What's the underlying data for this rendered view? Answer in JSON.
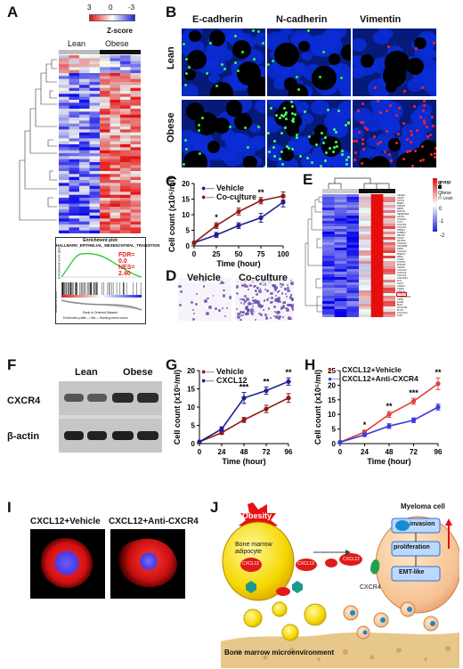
{
  "panels": {
    "A": {
      "label": "A",
      "legend_title": "Z-score",
      "legend_ticks": [
        "3",
        "0",
        "-3"
      ],
      "groups": [
        "Lean",
        "Obese"
      ],
      "gsea": {
        "title": "Enrichment plot:",
        "geneset": "HALLMARK_EPITHELIAL_MESENCHYMAL_TRANSITION",
        "fdr": "FDR=",
        "fdr_value": "0.0",
        "nes": "NES=",
        "nes_value": "2.40",
        "ylabel_top": "Enrichment score (ES)",
        "ylabel_bottom": "Ranked list metric",
        "xlabel": "Rank in Ordered Dataset",
        "legend": "Enrichment profile — Hits — Ranking metric scores"
      }
    },
    "B": {
      "label": "B",
      "columns": [
        "E-cadherin",
        "N-cadherin",
        "Vimentin"
      ],
      "rows": [
        "Lean",
        "Obese"
      ]
    },
    "C": {
      "label": "C",
      "xlabel": "Time (hour)",
      "ylabel": "Cell count (x10⁵/ml)",
      "sig": [
        "*",
        "*",
        "**"
      ]
    },
    "D": {
      "label": "D",
      "captions": [
        "Vehicle",
        "Co-culture"
      ]
    },
    "E": {
      "label": "E",
      "legend_title": "group",
      "legend_ticks": [
        "2",
        "1",
        "0",
        "-1",
        "-2"
      ],
      "group_items": [
        "Obese",
        "Lean"
      ],
      "genes": [
        "VEGFA",
        "CDH6",
        "FSTL3",
        "MMP1",
        "PMP22",
        "BMP1",
        "MATN2",
        "SERPINE2",
        "APLP1",
        "COL5A1",
        "THY1",
        "COL4A2",
        "COL4A1",
        "PRRX1",
        "IGFBP3",
        "FBLN5",
        "VCAN",
        "WNT5A",
        "COL6A3",
        "PDGFRB",
        "FZD8",
        "COL3A1",
        "MMP14",
        "FBN1",
        "TGM2",
        "POSTN",
        "MXRA5",
        "CDH11",
        "COL1A2",
        "COL5A2",
        "COL1A1",
        "COL16A1",
        "FN1",
        "SLIT2",
        "LAMA1",
        "SNAI2",
        "TAGLN",
        "CXCL12",
        "TNFRSF12A",
        "CD59",
        "ECM1",
        "MGP",
        "PCOLCE",
        "MYL9",
        "COL12A1",
        "FUM"
      ]
    },
    "F": {
      "label": "F",
      "groups": [
        "Lean",
        "Obese"
      ],
      "rows": [
        "CXCR4",
        "β-actin"
      ]
    },
    "G": {
      "label": "G",
      "xlabel": "Time (hour)",
      "ylabel": "Cell count (x10⁵/ml)",
      "sig": [
        "***",
        "**",
        "**"
      ]
    },
    "H": {
      "label": "H",
      "xlabel": "Time (hour)",
      "ylabel": "Cell count (x10⁵/ml)",
      "sig": [
        "*",
        "**",
        "***",
        "**"
      ]
    },
    "I": {
      "label": "I",
      "captions": [
        "CXCL12+Vehicle",
        "CXCL12+Anti-CXCR4"
      ]
    },
    "J": {
      "label": "J",
      "obesity": "Obesity",
      "adipocyte": "Bone marrow adipocyte",
      "myeloma": "Myeloma cell",
      "cxcl12_labels": [
        "CXCL12",
        "CXCL12",
        "CXCL12"
      ],
      "cxcr4": "CXCR4",
      "invasion": "invasion",
      "proliferation": "proliferation",
      "emt": "EMT-like",
      "microenv": "Bone marrow microenvironment"
    }
  },
  "chart_data": [
    {
      "type": "line",
      "panel": "C",
      "x": [
        0,
        25,
        50,
        75,
        100
      ],
      "series": [
        {
          "name": "Vehicle",
          "values": [
            1.0,
            3.5,
            6.5,
            9.0,
            14.0
          ],
          "err": [
            0.3,
            0.8,
            0.9,
            1.4,
            1.5
          ],
          "color": "#1f1f8c"
        },
        {
          "name": "Co-culture",
          "values": [
            1.0,
            6.5,
            11.0,
            14.5,
            16.0
          ],
          "err": [
            0.3,
            0.9,
            1.1,
            1.0,
            1.3
          ],
          "color": "#8c1a1a"
        }
      ],
      "xticks": [
        0,
        25,
        50,
        75,
        100
      ],
      "yticks": [
        0,
        5,
        10,
        15,
        20
      ],
      "ylim": [
        0,
        20
      ],
      "xlabel": "Time (hour)",
      "ylabel": "Cell count (x10⁵/ml)"
    },
    {
      "type": "line",
      "panel": "G",
      "x": [
        0,
        24,
        48,
        72,
        96
      ],
      "series": [
        {
          "name": "Vehicle",
          "values": [
            0.5,
            3.0,
            6.5,
            9.5,
            12.5
          ],
          "err": [
            0.2,
            0.5,
            0.7,
            1.0,
            1.2
          ],
          "color": "#8c1a1a"
        },
        {
          "name": "CXCL12",
          "values": [
            0.5,
            4.0,
            12.5,
            14.5,
            17.0
          ],
          "err": [
            0.2,
            0.6,
            1.5,
            1.0,
            1.0
          ],
          "color": "#1f1f8c"
        }
      ],
      "xticks": [
        0,
        24,
        48,
        72,
        96
      ],
      "yticks": [
        0,
        5,
        10,
        15,
        20
      ],
      "ylim": [
        0,
        20
      ],
      "xlabel": "Time (hour)",
      "ylabel": "Cell count (x10⁵/ml)"
    },
    {
      "type": "line",
      "panel": "H",
      "x": [
        0,
        24,
        48,
        72,
        96
      ],
      "series": [
        {
          "name": "CXCL12+Vehicle",
          "values": [
            0.5,
            4.0,
            10.0,
            14.5,
            20.5
          ],
          "err": [
            0.2,
            0.6,
            1.0,
            1.0,
            2.0
          ],
          "color": "#e04040"
        },
        {
          "name": "CXCL12+Anti-CXCR4",
          "values": [
            0.5,
            3.0,
            6.0,
            8.0,
            12.5
          ],
          "err": [
            0.2,
            0.5,
            0.8,
            0.8,
            1.0
          ],
          "color": "#3a3ae0"
        }
      ],
      "xticks": [
        0,
        24,
        48,
        72,
        96
      ],
      "yticks": [
        0,
        5,
        10,
        15,
        20,
        25
      ],
      "ylim": [
        0,
        25
      ],
      "xlabel": "Time (hour)",
      "ylabel": "Cell count (x10⁵/ml)"
    }
  ]
}
